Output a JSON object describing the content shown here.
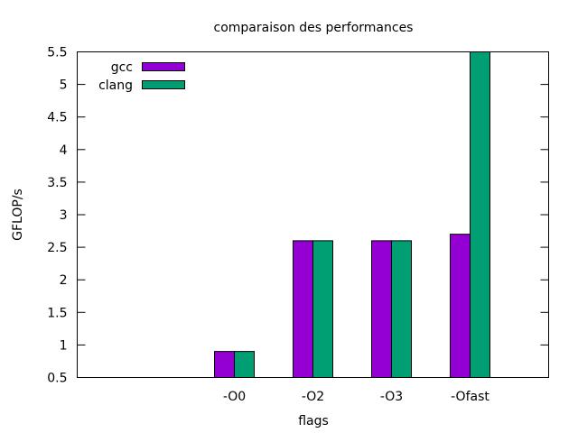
{
  "chart_data": {
    "type": "bar",
    "title": "comparaison des performances",
    "xlabel": "flags",
    "ylabel": "GFLOP/s",
    "ylim": [
      0.5,
      5.5
    ],
    "yticks": [
      "0.5",
      "1",
      "1.5",
      "2",
      "2.5",
      "3",
      "3.5",
      "4",
      "4.5",
      "5",
      "5.5"
    ],
    "categories": [
      "",
      "-O0",
      "-O2",
      "-O3",
      "-Ofast"
    ],
    "series": [
      {
        "name": "gcc",
        "color": "#9400d3",
        "values": [
          null,
          0.9,
          2.6,
          2.6,
          2.7
        ]
      },
      {
        "name": "clang",
        "color": "#009e73",
        "values": [
          null,
          0.9,
          2.6,
          2.6,
          5.5
        ]
      }
    ],
    "legend_position": "top-left",
    "grid": false
  }
}
